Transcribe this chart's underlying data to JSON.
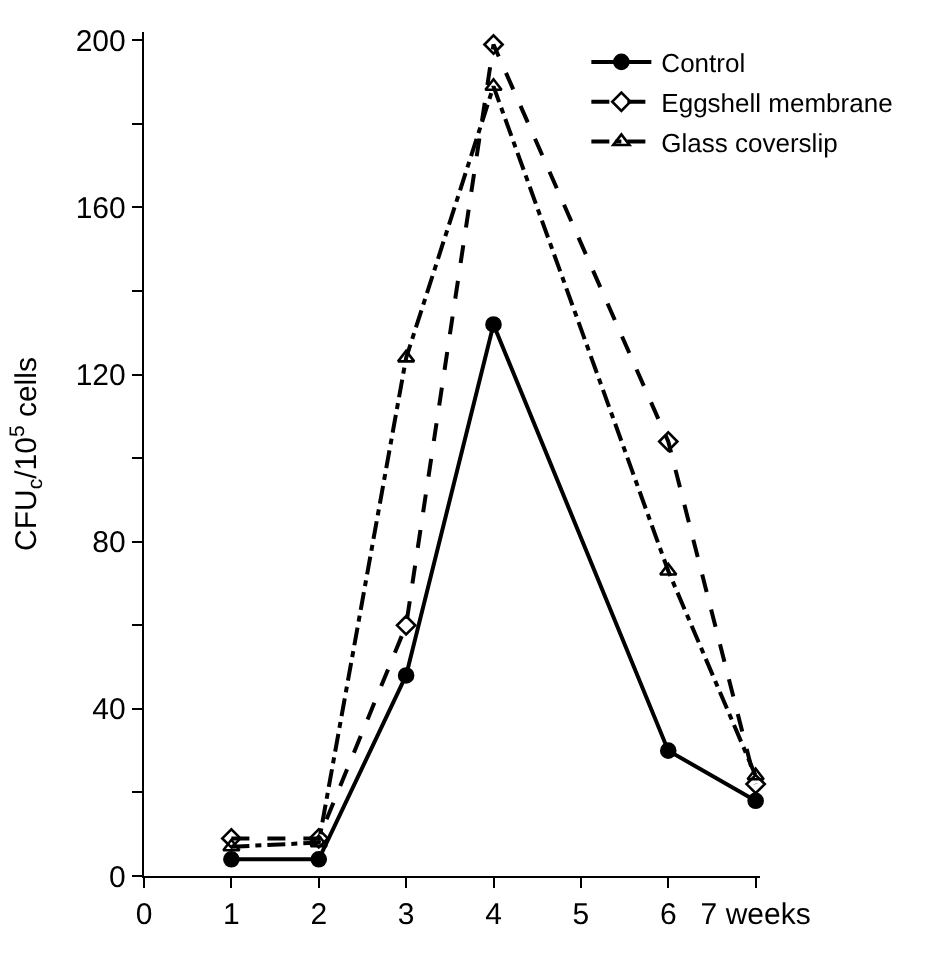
{
  "chart_data": {
    "type": "line",
    "ylabel": "CFU$_{c}$/10$^{5}$ cells",
    "x": [
      1,
      2,
      3,
      4,
      6,
      7
    ],
    "series": [
      {
        "name": "Control",
        "color": "#000000",
        "marker": "circle",
        "line_style": "solid",
        "values": [
          4,
          4,
          48,
          132,
          30,
          18
        ]
      },
      {
        "name": "Eggshell membrane",
        "color": "#000000",
        "marker": "diamond",
        "line_style": "dashed",
        "values": [
          9,
          9,
          60,
          199,
          104,
          22
        ]
      },
      {
        "name": "Glass coverslip",
        "color": "#000000",
        "marker": "triangle",
        "line_style": "dashdot",
        "values": [
          7,
          8,
          124,
          189,
          73,
          24
        ]
      }
    ],
    "xlim": [
      0,
      7.05
    ],
    "xticks": [
      0,
      1,
      2,
      3,
      4,
      5,
      6,
      {
        "value": 7,
        "label": "7 weeks"
      }
    ],
    "ylim": [
      0,
      202
    ],
    "yticks": [
      0,
      {
        "value": 20,
        "label": null
      },
      40,
      {
        "value": 60,
        "label": null
      },
      80,
      {
        "value": 100,
        "label": null
      },
      120,
      {
        "value": 140,
        "label": null
      },
      160,
      {
        "value": 180,
        "label": null
      },
      200
    ],
    "legend": "top right"
  }
}
